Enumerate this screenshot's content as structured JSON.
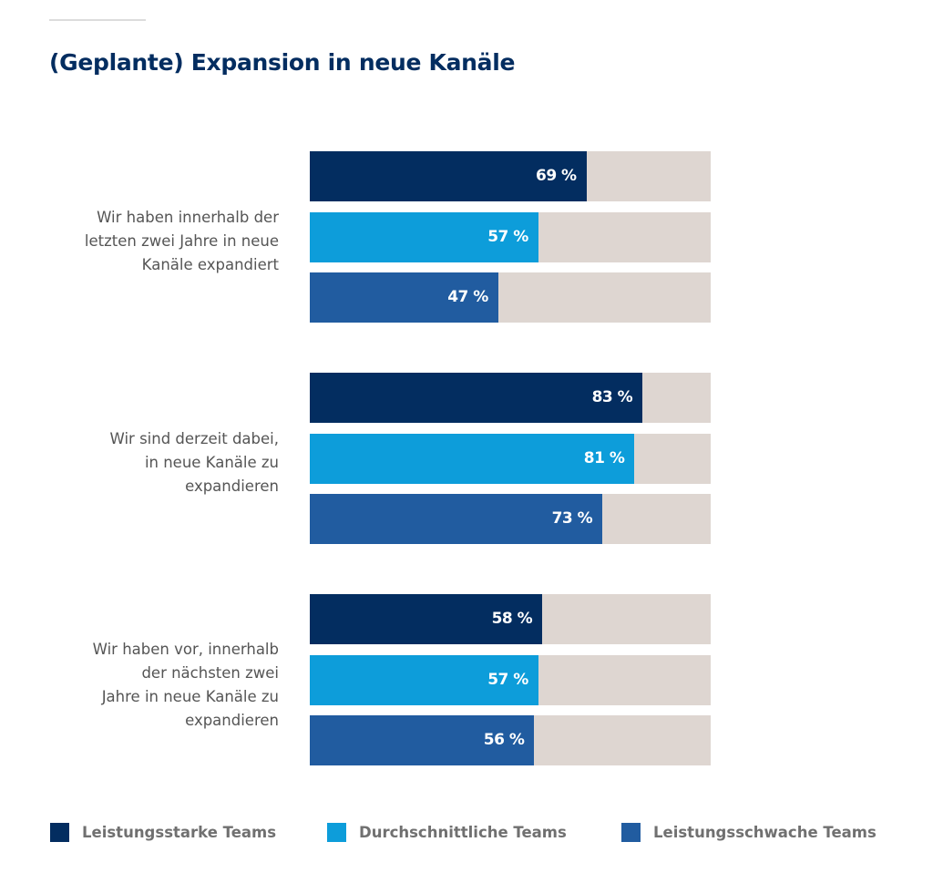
{
  "chart_data": {
    "type": "bar",
    "orientation": "horizontal",
    "title": "(Geplante) Expansion in neue Kanäle",
    "xlabel": "",
    "ylabel": "",
    "xlim": [
      0,
      100
    ],
    "unit": "%",
    "grid": false,
    "legend_position": "bottom",
    "categories": [
      "Wir haben innerhalb der\nletzten zwei Jahre in neue\nKanäle expandiert",
      "Wir sind derzeit dabei,\nin neue Kanäle zu\nexpandieren",
      "Wir haben vor, innerhalb\nder nächsten zwei\nJahre in neue Kanäle zu\nexpandieren"
    ],
    "series": [
      {
        "name": "Leistungsstarke Teams",
        "color": "#032d60",
        "values": [
          69,
          83,
          58
        ],
        "labels": [
          "69 %",
          "83 %",
          "58 %"
        ]
      },
      {
        "name": "Durchschnittliche Teams",
        "color": "#0d9dda",
        "values": [
          57,
          81,
          57
        ],
        "labels": [
          "57 %",
          "81 %",
          "57 %"
        ]
      },
      {
        "name": "Leistungsschwache Teams",
        "color": "#215ca0",
        "values": [
          47,
          73,
          56
        ],
        "labels": [
          "47 %",
          "73 %",
          "56 %"
        ]
      }
    ],
    "track_color": "#ded6d1"
  }
}
